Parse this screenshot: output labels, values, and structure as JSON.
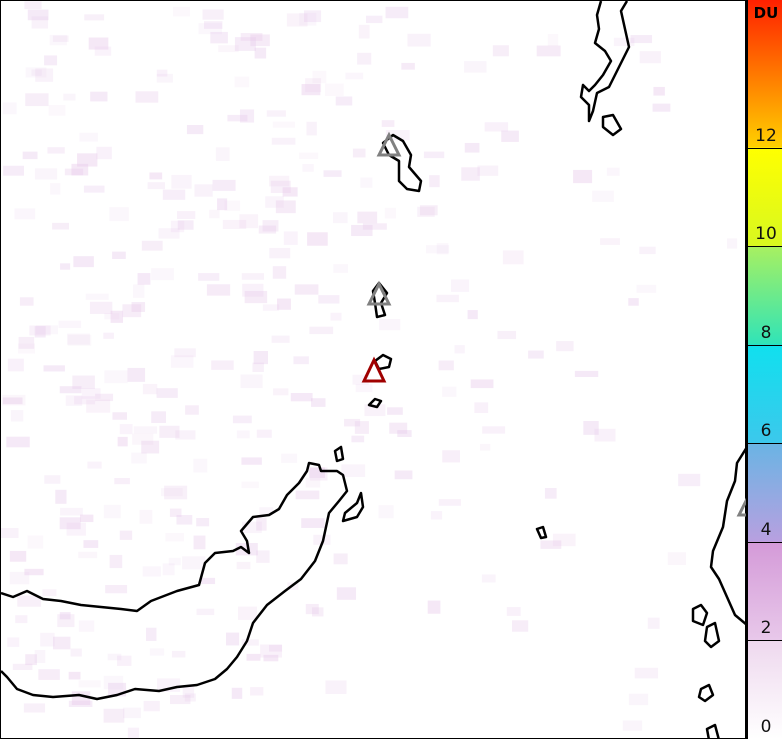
{
  "colorbar": {
    "unit": "DU",
    "range": [
      0,
      15
    ],
    "ticks": [
      "0",
      "2",
      "4",
      "6",
      "8",
      "10",
      "12"
    ],
    "stops": [
      {
        "v": 0,
        "c": "#ffffff"
      },
      {
        "v": 2,
        "c": "#eed8ee"
      },
      {
        "v": 2.01,
        "c": "#e8c8ea"
      },
      {
        "v": 4,
        "c": "#d49ad8"
      },
      {
        "v": 4.01,
        "c": "#b8a0e0"
      },
      {
        "v": 6,
        "c": "#6ab4e4"
      },
      {
        "v": 6.01,
        "c": "#3cc8ec"
      },
      {
        "v": 8,
        "c": "#10e0ee"
      },
      {
        "v": 8.01,
        "c": "#30e4b8"
      },
      {
        "v": 10,
        "c": "#a8f060"
      },
      {
        "v": 10.01,
        "c": "#d8f820"
      },
      {
        "v": 12,
        "c": "#ffff00"
      },
      {
        "v": 12.01,
        "c": "#ffd000"
      },
      {
        "v": 15,
        "c": "#ff2000"
      }
    ]
  },
  "map": {
    "coastline_color": "#000000",
    "background_value_color": "#e6c8ea",
    "volcanoes": [
      {
        "name": "volcano-marker",
        "status": "inactive",
        "color": "#808080"
      },
      {
        "name": "volcano-marker",
        "status": "inactive",
        "color": "#808080"
      },
      {
        "name": "volcano-marker",
        "status": "active",
        "color": "#a00000"
      },
      {
        "name": "volcano-marker",
        "status": "inactive",
        "color": "#808080"
      }
    ]
  }
}
